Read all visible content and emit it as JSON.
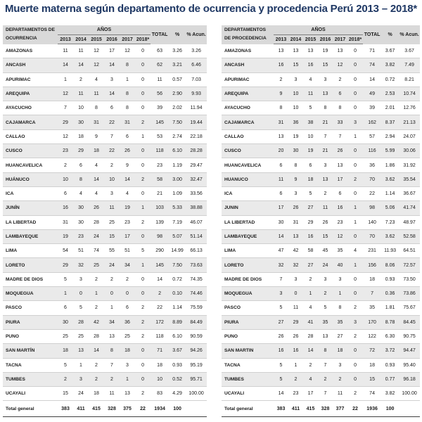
{
  "title": "Muerte materna según departamento de ocurrencia  y procedencia Perú 2013 – 2018*",
  "left_table": {
    "dept_header": [
      "DEPARTAMENTOS DE",
      "OCURRENCIA"
    ],
    "years_header": "AÑOS",
    "years": [
      "2013",
      "2014",
      "2015",
      "2016",
      "2017",
      "2018*"
    ],
    "total_header": "TOTAL",
    "pct_header": "%",
    "acum_header": "% Acun.",
    "rows": [
      [
        "AMAZONAS",
        "11",
        "11",
        "12",
        "17",
        "12",
        "0",
        "63",
        "3.26",
        "3.26"
      ],
      [
        "ANCASH",
        "14",
        "14",
        "12",
        "14",
        "8",
        "0",
        "62",
        "3.21",
        "6.46"
      ],
      [
        "APURIMAC",
        "1",
        "2",
        "4",
        "3",
        "1",
        "0",
        "11",
        "0.57",
        "7.03"
      ],
      [
        "AREQUIPA",
        "12",
        "11",
        "11",
        "14",
        "8",
        "0",
        "56",
        "2.90",
        "9.93"
      ],
      [
        "AYACUCHO",
        "7",
        "10",
        "8",
        "6",
        "8",
        "0",
        "39",
        "2.02",
        "11.94"
      ],
      [
        "CAJAMARCA",
        "29",
        "30",
        "31",
        "22",
        "31",
        "2",
        "145",
        "7.50",
        "19.44"
      ],
      [
        "CALLAO",
        "12",
        "18",
        "9",
        "7",
        "6",
        "1",
        "53",
        "2.74",
        "22.18"
      ],
      [
        "CUSCO",
        "23",
        "29",
        "18",
        "22",
        "26",
        "0",
        "118",
        "6.10",
        "28.28"
      ],
      [
        "HUANCAVELICA",
        "2",
        "6",
        "4",
        "2",
        "9",
        "0",
        "23",
        "1.19",
        "29.47"
      ],
      [
        "HUÁNUCO",
        "10",
        "8",
        "14",
        "10",
        "14",
        "2",
        "58",
        "3.00",
        "32.47"
      ],
      [
        "ICA",
        "6",
        "4",
        "4",
        "3",
        "4",
        "0",
        "21",
        "1.09",
        "33.56"
      ],
      [
        "JUNÍN",
        "16",
        "30",
        "26",
        "11",
        "19",
        "1",
        "103",
        "5.33",
        "38.88"
      ],
      [
        "LA LIBERTAD",
        "31",
        "30",
        "28",
        "25",
        "23",
        "2",
        "139",
        "7.19",
        "46.07"
      ],
      [
        "LAMBAYEQUE",
        "19",
        "23",
        "24",
        "15",
        "17",
        "0",
        "98",
        "5.07",
        "51.14"
      ],
      [
        "LIMA",
        "54",
        "51",
        "74",
        "55",
        "51",
        "5",
        "290",
        "14.99",
        "66.13"
      ],
      [
        "LORETO",
        "29",
        "32",
        "25",
        "24",
        "34",
        "1",
        "145",
        "7.50",
        "73.63"
      ],
      [
        "MADRE DE DIOS",
        "5",
        "3",
        "2",
        "2",
        "2",
        "0",
        "14",
        "0.72",
        "74.35"
      ],
      [
        "MOQUEGUA",
        "1",
        "0",
        "1",
        "0",
        "0",
        "0",
        "2",
        "0.10",
        "74.46"
      ],
      [
        "PASCO",
        "6",
        "5",
        "2",
        "1",
        "6",
        "2",
        "22",
        "1.14",
        "75.59"
      ],
      [
        "PIURA",
        "30",
        "28",
        "42",
        "34",
        "36",
        "2",
        "172",
        "8.89",
        "84.49"
      ],
      [
        "PUNO",
        "25",
        "25",
        "28",
        "13",
        "25",
        "2",
        "118",
        "6.10",
        "90.59"
      ],
      [
        "SAN MARTÍN",
        "18",
        "13",
        "14",
        "8",
        "18",
        "0",
        "71",
        "3.67",
        "94.26"
      ],
      [
        "TACNA",
        "5",
        "1",
        "2",
        "7",
        "3",
        "0",
        "18",
        "0.93",
        "95.19"
      ],
      [
        "TUMBES",
        "2",
        "3",
        "2",
        "2",
        "1",
        "0",
        "10",
        "0.52",
        "95.71"
      ],
      [
        "UCAYALI",
        "15",
        "24",
        "18",
        "11",
        "13",
        "2",
        "83",
        "4.29",
        "100.00"
      ]
    ],
    "total_row": [
      "Total general",
      "383",
      "411",
      "415",
      "328",
      "375",
      "22",
      "1934",
      "100",
      ""
    ]
  },
  "right_table": {
    "dept_header": [
      "DEPARTAMENTOS",
      "DE PROCEDENCIA"
    ],
    "years_header": "AÑOS",
    "years": [
      "2013",
      "2014",
      "2015",
      "2016",
      "2017",
      "2018*"
    ],
    "total_header": "TOTAL",
    "pct_header": "%",
    "acum_header": "% Acun.",
    "rows": [
      [
        "AMAZONAS",
        "13",
        "13",
        "13",
        "19",
        "13",
        "0",
        "71",
        "3.67",
        "3.67"
      ],
      [
        "ANCASH",
        "16",
        "15",
        "16",
        "15",
        "12",
        "0",
        "74",
        "3.82",
        "7.49"
      ],
      [
        "APURIMAC",
        "2",
        "3",
        "4",
        "3",
        "2",
        "0",
        "14",
        "0.72",
        "8.21"
      ],
      [
        "AREQUIPA",
        "9",
        "10",
        "11",
        "13",
        "6",
        "0",
        "49",
        "2.53",
        "10.74"
      ],
      [
        "AYACUCHO",
        "8",
        "10",
        "5",
        "8",
        "8",
        "0",
        "39",
        "2.01",
        "12.76"
      ],
      [
        "CAJAMARCA",
        "31",
        "36",
        "38",
        "21",
        "33",
        "3",
        "162",
        "8.37",
        "21.13"
      ],
      [
        "CALLAO",
        "13",
        "19",
        "10",
        "7",
        "7",
        "1",
        "57",
        "2.94",
        "24.07"
      ],
      [
        "CUSCO",
        "20",
        "30",
        "19",
        "21",
        "26",
        "0",
        "116",
        "5.99",
        "30.06"
      ],
      [
        "HUANCAVELICA",
        "6",
        "8",
        "6",
        "3",
        "13",
        "0",
        "36",
        "1.86",
        "31.92"
      ],
      [
        "HUANUCO",
        "11",
        "9",
        "18",
        "13",
        "17",
        "2",
        "70",
        "3.62",
        "35.54"
      ],
      [
        "ICA",
        "6",
        "3",
        "5",
        "2",
        "6",
        "0",
        "22",
        "1.14",
        "36.67"
      ],
      [
        "JUNIN",
        "17",
        "26",
        "27",
        "11",
        "16",
        "1",
        "98",
        "5.06",
        "41.74"
      ],
      [
        "LA LIBERTAD",
        "30",
        "31",
        "29",
        "26",
        "23",
        "1",
        "140",
        "7.23",
        "48.97"
      ],
      [
        "LAMBAYEQUE",
        "14",
        "13",
        "16",
        "15",
        "12",
        "0",
        "70",
        "3.62",
        "52.58"
      ],
      [
        "LIMA",
        "47",
        "42",
        "58",
        "45",
        "35",
        "4",
        "231",
        "11.93",
        "64.51"
      ],
      [
        "LORETO",
        "32",
        "32",
        "27",
        "24",
        "40",
        "1",
        "156",
        "8.06",
        "72.57"
      ],
      [
        "MADRE DE DIOS",
        "7",
        "3",
        "2",
        "3",
        "3",
        "0",
        "18",
        "0.93",
        "73.50"
      ],
      [
        "MOQUEGUA",
        "3",
        "0",
        "1",
        "2",
        "1",
        "0",
        "7",
        "0.36",
        "73.86"
      ],
      [
        "PASCO",
        "5",
        "11",
        "4",
        "5",
        "8",
        "2",
        "35",
        "1.81",
        "75.67"
      ],
      [
        "PIURA",
        "27",
        "29",
        "41",
        "35",
        "35",
        "3",
        "170",
        "8.78",
        "84.45"
      ],
      [
        "PUNO",
        "26",
        "26",
        "28",
        "13",
        "27",
        "2",
        "122",
        "6.30",
        "90.75"
      ],
      [
        "SAN MARTIN",
        "16",
        "16",
        "14",
        "8",
        "18",
        "0",
        "72",
        "3.72",
        "94.47"
      ],
      [
        "TACNA",
        "5",
        "1",
        "2",
        "7",
        "3",
        "0",
        "18",
        "0.93",
        "95.40"
      ],
      [
        "TUMBES",
        "5",
        "2",
        "4",
        "2",
        "2",
        "0",
        "15",
        "0.77",
        "96.18"
      ],
      [
        "UCAYALI",
        "14",
        "23",
        "17",
        "7",
        "11",
        "2",
        "74",
        "3.82",
        "100.00"
      ]
    ],
    "total_row": [
      "Total general",
      "383",
      "411",
      "415",
      "328",
      "377",
      "22",
      "1936",
      "100",
      ""
    ]
  }
}
